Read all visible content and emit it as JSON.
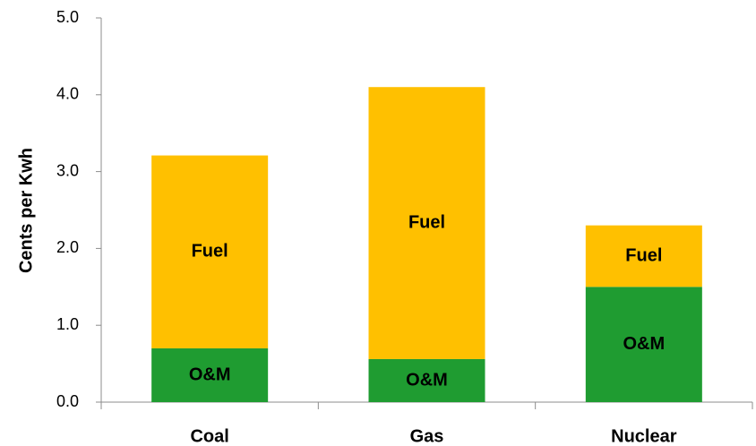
{
  "chart_data": {
    "type": "stacked-bar",
    "y_label": "Cents per Kwh",
    "categories": [
      "Coal",
      "Gas",
      "Nuclear"
    ],
    "series": [
      {
        "name": "O&M",
        "color": "#1f9c31",
        "values": [
          0.7,
          0.56,
          1.5
        ]
      },
      {
        "name": "Fuel",
        "color": "#ffc000",
        "values": [
          2.51,
          3.54,
          0.8
        ]
      }
    ],
    "ylim": [
      0,
      5
    ],
    "yticks": [
      {
        "value": 0,
        "label": "0.0"
      },
      {
        "value": 1,
        "label": "1.0"
      },
      {
        "value": 2,
        "label": "2.0"
      },
      {
        "value": 3,
        "label": "3.0"
      },
      {
        "value": 4,
        "label": "4.0"
      },
      {
        "value": 5,
        "label": "5.0"
      }
    ],
    "grid": false
  }
}
